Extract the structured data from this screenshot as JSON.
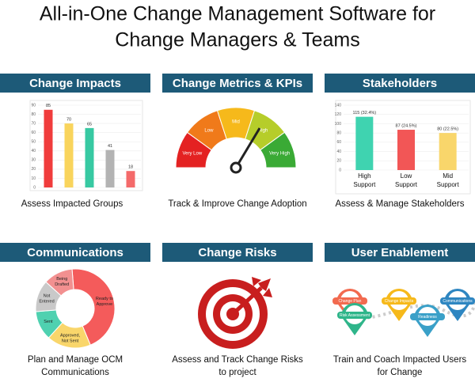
{
  "header": {
    "title_lines": [
      "All-in-One Change Management Software for",
      "Change Managers & Teams"
    ]
  },
  "panels": [
    {
      "title": "Change Impacts",
      "caption_lines": [
        "Assess Impacted Groups"
      ],
      "chart": {
        "type": "bar",
        "values": [
          85,
          70,
          65,
          41,
          18
        ],
        "colors": [
          "#f03c3c",
          "#f9d45c",
          "#37c9a2",
          "#b3b3b3",
          "#f46a6a"
        ],
        "ylim": [
          0,
          90
        ],
        "yticks": [
          0,
          10,
          20,
          30,
          40,
          50,
          60,
          70,
          80,
          90
        ],
        "grid": true
      }
    },
    {
      "title": "Change Metrics & KPIs",
      "caption_lines": [
        "Track & Improve Change Adoption"
      ],
      "chart": {
        "type": "gauge",
        "segments": [
          "Very Low",
          "Low",
          "Mid",
          "High",
          "Very High"
        ],
        "colors": [
          "#e42222",
          "#f07a1a",
          "#f6b91b",
          "#b6cd2a",
          "#3aaa35"
        ]
      }
    },
    {
      "title": "Stakeholders",
      "caption_lines": [
        "Assess & Manage Stakeholders"
      ],
      "chart": {
        "type": "bar",
        "categories": [
          [
            "High",
            "Support"
          ],
          [
            "Low",
            "Support"
          ],
          [
            "Mid",
            "Support"
          ]
        ],
        "values": [
          115,
          87,
          80
        ],
        "value_labels": [
          "115 (32.4%)",
          "87 (24.5%)",
          "80 (22.5%)"
        ],
        "colors": [
          "#3fd3b0",
          "#f25656",
          "#f9d66b"
        ],
        "ylim": [
          0,
          140
        ],
        "yticks": [
          0,
          20,
          40,
          60,
          80,
          100,
          120,
          140
        ],
        "grid": true
      }
    },
    {
      "title": "Communications",
      "caption_lines": [
        "Plan and Manage OCM",
        "Communications"
      ],
      "chart": {
        "type": "donut",
        "labels": [
          [
            "Ready to",
            "Approve"
          ],
          [
            "Approved,",
            "Not Sent"
          ],
          [
            "Sent"
          ],
          [
            "Not",
            "Entered"
          ],
          [
            "Being",
            "Drafted"
          ]
        ],
        "values": [
          45,
          18,
          12,
          13,
          12
        ],
        "colors": [
          "#f45b5b",
          "#f9d66b",
          "#4fd1b0",
          "#c9c9c9",
          "#f29090"
        ]
      }
    },
    {
      "title": "Change Risks",
      "caption_lines": [
        "Assess and Track Change Risks",
        "to project"
      ]
    },
    {
      "title": "User Enablement",
      "caption_lines": [
        "Train and Coach Impacted Users",
        "for Change"
      ],
      "pins": [
        "Change Plan",
        "Change Impacts",
        "Risk Assessment",
        "Readiness",
        "Communications"
      ]
    }
  ]
}
